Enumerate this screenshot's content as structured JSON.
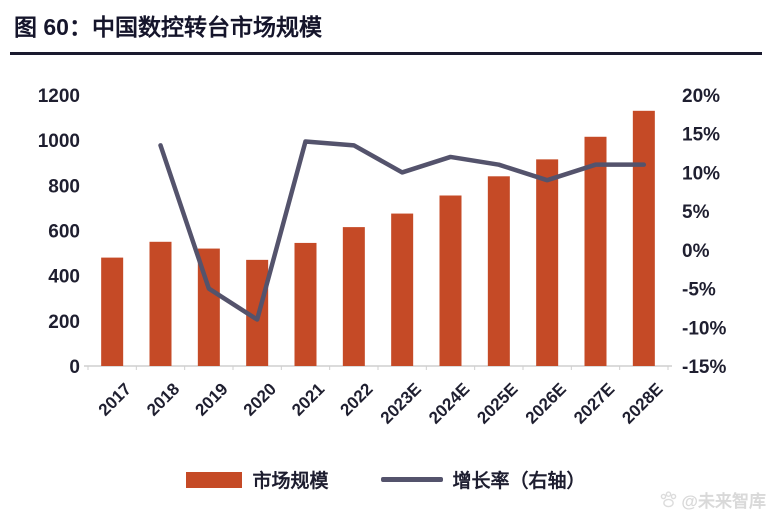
{
  "figure": {
    "title": "图 60：中国数控转台市场规模",
    "watermark_text": "@未来智库"
  },
  "chart_data": {
    "type": "bar+line",
    "title": "中国数控转台市场规模",
    "categories": [
      "2017",
      "2018",
      "2019",
      "2020",
      "2021",
      "2022",
      "2023E",
      "2024E",
      "2025E",
      "2026E",
      "2027E",
      "2028E"
    ],
    "series": [
      {
        "name": "市场规模",
        "type": "bar",
        "axis": "left",
        "color": "#C54A26",
        "values": [
          480,
          550,
          520,
          470,
          545,
          615,
          675,
          755,
          840,
          915,
          1015,
          1130
        ]
      },
      {
        "name": "增长率（右轴）",
        "type": "line",
        "axis": "right",
        "color": "#54536C",
        "values": [
          null,
          13.5,
          -5,
          -9,
          14,
          13.5,
          10,
          12,
          11,
          9,
          11,
          11
        ]
      }
    ],
    "left_axis": {
      "min": 0,
      "max": 1200,
      "step": 200,
      "ticks": [
        "1200",
        "1000",
        "800",
        "600",
        "400",
        "200",
        "0"
      ]
    },
    "right_axis": {
      "min": -15,
      "max": 20,
      "step": 5,
      "ticks": [
        "20%",
        "15%",
        "10%",
        "5%",
        "0%",
        "-5%",
        "-10%",
        "-15%"
      ]
    },
    "grid": false,
    "legend_position": "bottom",
    "axis_line_color": "#CFCFCF"
  }
}
